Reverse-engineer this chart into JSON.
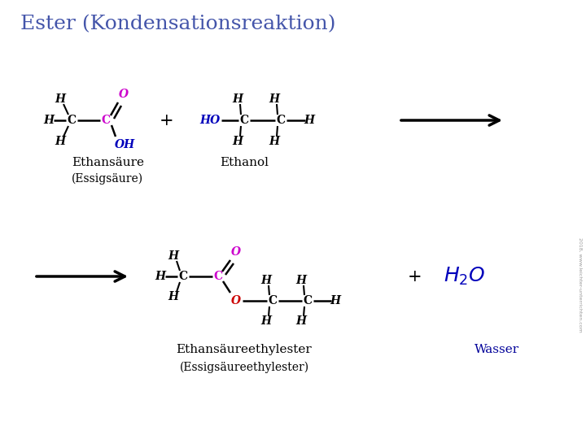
{
  "title": "Ester (Kondensationsreaktion)",
  "title_color": "#4455aa",
  "title_fontsize": 18,
  "bg_color": "#ffffff",
  "black": "#000000",
  "magenta": "#cc00cc",
  "blue": "#0000bb",
  "red": "#cc0000",
  "dark_blue": "#000099",
  "label1": "Ethansäure",
  "label2": "Ethanol",
  "label3": "(Essigsäure)",
  "label4": "Ethansäureethylester",
  "label5": "(Essigsäureethylester)",
  "label6": "Wasser",
  "watermark": "2018, www.leichter-unterrichten.com"
}
